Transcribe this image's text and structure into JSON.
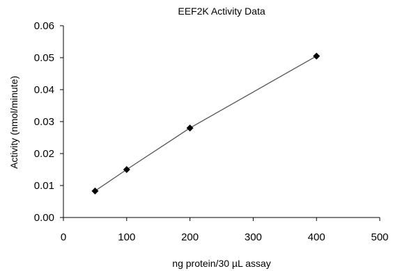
{
  "chart_data": {
    "type": "scatter",
    "title": "EEF2K Activity Data",
    "xlabel": "ng protein/30 µL assay",
    "ylabel": "Activity (nmol/minute)",
    "xlim": [
      0,
      500
    ],
    "ylim": [
      0,
      0.06
    ],
    "x_ticks": [
      "0",
      "100",
      "200",
      "300",
      "400",
      "500"
    ],
    "y_ticks": [
      "0.00",
      "0.01",
      "0.02",
      "0.03",
      "0.04",
      "0.05",
      "0.06"
    ],
    "grid": false,
    "legend": "none",
    "line_fit": true,
    "marker": "diamond",
    "series": [
      {
        "x": [
          50,
          100,
          200,
          400
        ],
        "y": [
          0.0083,
          0.015,
          0.028,
          0.0505
        ]
      }
    ],
    "colors": {
      "line": "#555555",
      "marker": "#000000",
      "axis": "#000000"
    }
  }
}
